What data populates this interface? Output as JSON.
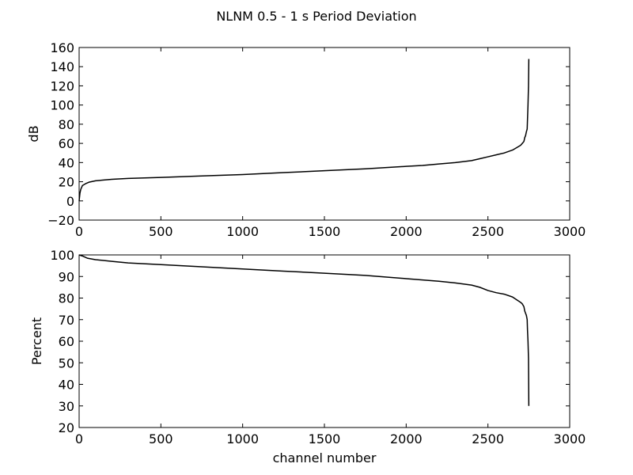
{
  "figure": {
    "title": "NLNM 0.5 - 1 s Period Deviation"
  },
  "chart_data": [
    {
      "type": "line",
      "xlabel": "",
      "ylabel": "dB",
      "xlim": [
        0,
        3000
      ],
      "ylim": [
        -20,
        160
      ],
      "xticks": [
        0,
        500,
        1000,
        1500,
        2000,
        2500,
        3000
      ],
      "yticks": [
        -20,
        0,
        20,
        40,
        60,
        80,
        100,
        120,
        140,
        160
      ],
      "xtick_labels": [
        "0",
        "500",
        "1000",
        "1500",
        "2000",
        "2500",
        "3000"
      ],
      "ytick_labels": [
        "−20",
        "0",
        "20",
        "40",
        "60",
        "80",
        "100",
        "120",
        "140",
        "160"
      ],
      "grid": false,
      "series": [
        {
          "color": "#000000",
          "x": [
            0,
            5,
            10,
            20,
            40,
            60,
            100,
            200,
            300,
            500,
            750,
            1000,
            1250,
            1500,
            1750,
            2000,
            2100,
            2200,
            2300,
            2350,
            2400,
            2450,
            2500,
            2550,
            2600,
            2650,
            2680,
            2700,
            2710,
            2720,
            2725,
            2730,
            2735,
            2740,
            2742,
            2745,
            2748,
            2750
          ],
          "y": [
            0,
            8,
            12,
            16,
            18,
            19.5,
            21,
            22.5,
            23.5,
            24.5,
            26,
            27.5,
            29.5,
            31.5,
            33.5,
            36,
            37,
            38.5,
            40,
            41,
            42,
            44,
            46,
            48,
            50,
            53,
            56,
            58,
            60,
            62,
            66,
            68,
            72,
            75,
            85,
            100,
            120,
            148
          ]
        }
      ]
    },
    {
      "type": "line",
      "xlabel": "channel number",
      "ylabel": "Percent",
      "xlim": [
        0,
        3000
      ],
      "ylim": [
        20,
        100
      ],
      "xticks": [
        0,
        500,
        1000,
        1500,
        2000,
        2500,
        3000
      ],
      "yticks": [
        20,
        30,
        40,
        50,
        60,
        70,
        80,
        90,
        100
      ],
      "xtick_labels": [
        "0",
        "500",
        "1000",
        "1500",
        "2000",
        "2500",
        "3000"
      ],
      "ytick_labels": [
        "20",
        "30",
        "40",
        "50",
        "60",
        "70",
        "80",
        "90",
        "100"
      ],
      "grid": false,
      "series": [
        {
          "color": "#000000",
          "x": [
            0,
            20,
            50,
            100,
            200,
            300,
            500,
            750,
            1000,
            1250,
            1500,
            1750,
            2000,
            2200,
            2300,
            2400,
            2450,
            2500,
            2550,
            2600,
            2650,
            2680,
            2700,
            2710,
            2720,
            2725,
            2730,
            2735,
            2740,
            2742,
            2745,
            2748,
            2750
          ],
          "y": [
            100,
            99.5,
            98.5,
            97.8,
            97,
            96.3,
            95.5,
            94.5,
            93.5,
            92.5,
            91.5,
            90.5,
            89,
            87.8,
            87,
            86,
            85,
            83.5,
            82.5,
            81.8,
            80.5,
            79,
            78,
            77.3,
            76,
            74,
            73,
            72,
            70,
            65,
            60,
            52,
            30
          ]
        }
      ]
    }
  ]
}
